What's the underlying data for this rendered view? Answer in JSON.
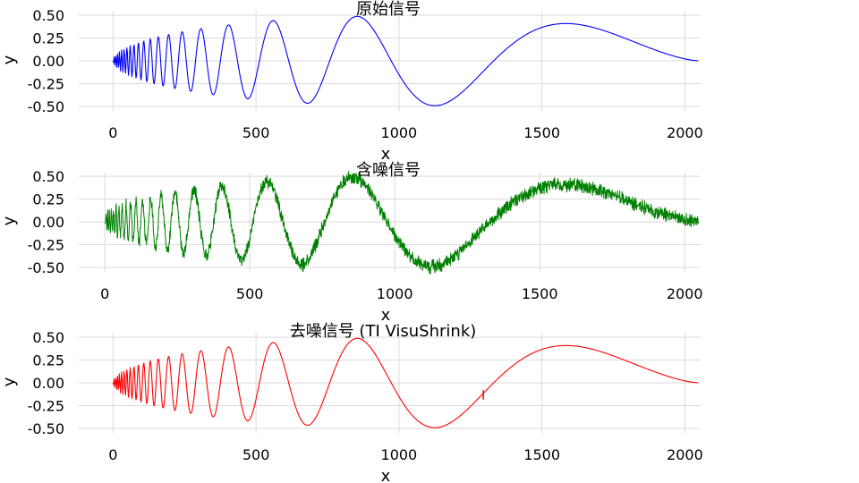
{
  "figure": {
    "background": "#ffffff",
    "grid_color": "#d9d9d9"
  },
  "chart_data": [
    {
      "type": "line",
      "title": "原始信号",
      "xlabel": "x",
      "ylabel": "y",
      "xlim": [
        -120,
        2055
      ],
      "ylim": [
        -0.55,
        0.55
      ],
      "xticks": [
        0,
        500,
        1000,
        1500,
        2000
      ],
      "xtick_labels": [
        "0",
        "500",
        "1000",
        "1500",
        "2000"
      ],
      "yticks": [
        0.5,
        0.25,
        0.0,
        -0.25,
        -0.5
      ],
      "ytick_labels": [
        "0.50",
        "0.25",
        "0.00",
        "-0.25",
        "-0.50"
      ],
      "grid": true,
      "color": "#0000ff",
      "signal": {
        "description_points": 2048,
        "x_start": 0,
        "x_end": 2048,
        "envelope": "sqrt(x(1-x))",
        "form": "doppler"
      },
      "noise": false
    },
    {
      "type": "line",
      "title": "含噪信号",
      "xlabel": "x",
      "ylabel": "y",
      "xlim": [
        -90,
        2055
      ],
      "ylim": [
        -0.55,
        0.55
      ],
      "xticks": [
        0,
        500,
        1000,
        1500,
        2000
      ],
      "xtick_labels": [
        "0",
        "500",
        "1000",
        "1500",
        "2000"
      ],
      "yticks": [
        0.5,
        0.25,
        0.0,
        -0.25,
        -0.5
      ],
      "ytick_labels": [
        "0.50",
        "0.25",
        "0.00",
        "-0.25",
        "-0.50"
      ],
      "grid": true,
      "color": "#008000",
      "signal": {
        "description_points": 2048,
        "x_start": 0,
        "x_end": 2048,
        "envelope": "sqrt(x(1-x))",
        "form": "doppler"
      },
      "noise": true
    },
    {
      "type": "line",
      "title": "去噪信号 (TI VisuShrink)",
      "xlabel": "x",
      "ylabel": "y",
      "xlim": [
        -120,
        2055
      ],
      "ylim": [
        -0.55,
        0.55
      ],
      "xticks": [
        0,
        500,
        1000,
        1500,
        2000
      ],
      "xtick_labels": [
        "0",
        "500",
        "1000",
        "1500",
        "2000"
      ],
      "yticks": [
        0.5,
        0.25,
        0.0,
        -0.25,
        -0.5
      ],
      "ytick_labels": [
        "0.50",
        "0.25",
        "0.00",
        "-0.25",
        "-0.50"
      ],
      "grid": true,
      "color": "#ff0000",
      "signal": {
        "description_points": 2048,
        "x_start": 0,
        "x_end": 2048,
        "envelope": "sqrt(x(1-x))",
        "form": "doppler"
      },
      "noise": false,
      "artifact_x": 1295
    }
  ]
}
